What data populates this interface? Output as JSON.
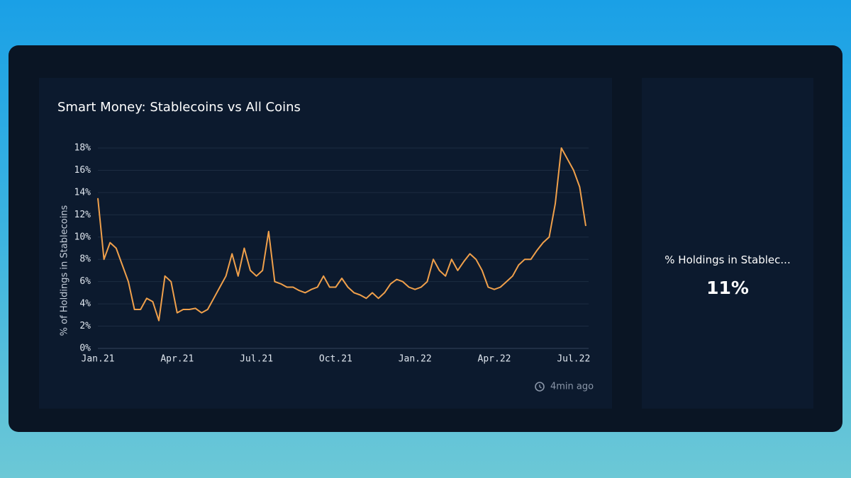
{
  "chart_data": {
    "type": "line",
    "title": "Smart Money: Stablecoins vs All Coins",
    "y_label": "% of Holdings in Stablecoins",
    "categories": [
      "Jan.21",
      null,
      null,
      null,
      null,
      null,
      null,
      null,
      null,
      null,
      null,
      null,
      null,
      "Apr.21",
      null,
      null,
      null,
      null,
      null,
      null,
      null,
      null,
      null,
      null,
      null,
      null,
      "Jul.21",
      null,
      null,
      null,
      null,
      null,
      null,
      null,
      null,
      null,
      null,
      null,
      null,
      "Oct.21",
      null,
      null,
      null,
      null,
      null,
      null,
      null,
      null,
      null,
      null,
      null,
      null,
      "Jan.22",
      null,
      null,
      null,
      null,
      null,
      null,
      null,
      null,
      null,
      null,
      null,
      null,
      "Apr.22",
      null,
      null,
      null,
      null,
      null,
      null,
      null,
      null,
      null,
      null,
      null,
      null,
      "Jul.22",
      null,
      null
    ],
    "series": [
      {
        "name": "% Holdings in Stablecoins",
        "color": "#f0a04b",
        "values": [
          13.5,
          8,
          9.5,
          9,
          7.5,
          6,
          3.5,
          3.5,
          4.5,
          4.2,
          2.5,
          6.5,
          6,
          3.2,
          3.5,
          3.5,
          3.6,
          3.2,
          3.5,
          4.5,
          5.5,
          6.5,
          8.5,
          6.5,
          9,
          7,
          6.5,
          7,
          10.5,
          6,
          5.8,
          5.5,
          5.5,
          5.2,
          5,
          5.3,
          5.5,
          6.5,
          5.5,
          5.5,
          6.3,
          5.5,
          5,
          4.8,
          4.5,
          5,
          4.5,
          5,
          5.8,
          6.2,
          6,
          5.5,
          5.3,
          5.5,
          6,
          8,
          7,
          6.5,
          8,
          7,
          7.8,
          8.5,
          8,
          7,
          5.5,
          5.3,
          5.5,
          6,
          6.5,
          7.5,
          8,
          8,
          8.8,
          9.5,
          10,
          13,
          18,
          17,
          16,
          14.5,
          11
        ]
      }
    ],
    "ylim": [
      0,
      18.7
    ],
    "yticks": [
      {
        "value": 0,
        "label": "0%"
      },
      {
        "value": 2,
        "label": "2%"
      },
      {
        "value": 4,
        "label": "4%"
      },
      {
        "value": 6,
        "label": "6%"
      },
      {
        "value": 8,
        "label": "8%"
      },
      {
        "value": 10,
        "label": "10%"
      },
      {
        "value": 12,
        "label": "12%"
      },
      {
        "value": 14,
        "label": "14%"
      },
      {
        "value": 16,
        "label": "16%"
      },
      {
        "value": 18,
        "label": "18%"
      }
    ],
    "grid": true
  },
  "updated": "4min ago",
  "kpi": {
    "label": "% Holdings in Stablec...",
    "value": "11%"
  }
}
